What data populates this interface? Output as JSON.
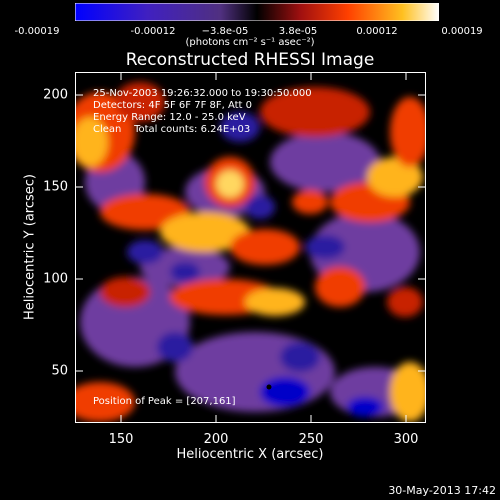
{
  "colorbar": {
    "ticks": [
      "-0.00019",
      "-0.00012",
      "−3.8e-05",
      "3.8e-05",
      "0.00012",
      "0.00019"
    ],
    "units_label": "(photons cm⁻² s⁻¹ asec⁻²)"
  },
  "title": "Reconstructed RHESSI Image",
  "info": {
    "time": "25-Nov-2003 19:26:32.000 to 19:30:50.000",
    "detectors": "Detectors: 4F 5F 6F 7F 8F, Att 0",
    "energy": "Energy Range: 12.0 - 25.0 keV",
    "clean": "Clean    Total counts: 6.24E+03"
  },
  "peak": "Position of Peak = [207,161]",
  "axes": {
    "xlabel": "Heliocentric X (arcsec)",
    "ylabel": "Heliocentric Y (arcsec)",
    "xticks": [
      "150",
      "200",
      "250",
      "300"
    ],
    "yticks": [
      "50",
      "100",
      "150",
      "200"
    ]
  },
  "footer": "30-May-2013 17:42",
  "colors": {
    "map": [
      "#0000c8",
      "#5028b4",
      "#6e3ca0",
      "#000000",
      "#8c0a0a",
      "#f03c00",
      "#ffb41e",
      "#ffffd2"
    ]
  }
}
